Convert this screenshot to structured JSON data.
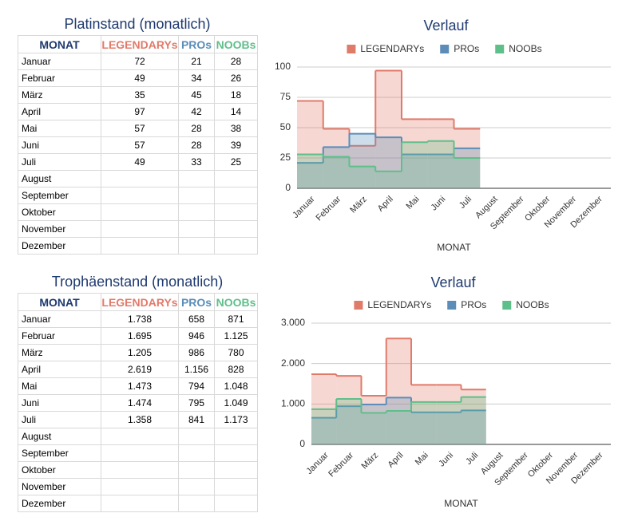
{
  "tables": [
    {
      "title": "Platinstand (monatlich)",
      "header": [
        "MONAT",
        "LEGENDARYs",
        "PROs",
        "NOOBs"
      ],
      "header_colors": [
        "#1f3a70",
        "#e07b6a",
        "#5b8db8",
        "#5fbf8a"
      ],
      "rows": [
        [
          "Januar",
          "72",
          "21",
          "28"
        ],
        [
          "Februar",
          "49",
          "34",
          "26"
        ],
        [
          "März",
          "35",
          "45",
          "18"
        ],
        [
          "April",
          "97",
          "42",
          "14"
        ],
        [
          "Mai",
          "57",
          "28",
          "38"
        ],
        [
          "Juni",
          "57",
          "28",
          "39"
        ],
        [
          "Juli",
          "49",
          "33",
          "25"
        ],
        [
          "August"
        ],
        [
          "September"
        ],
        [
          "Oktober"
        ],
        [
          "November"
        ],
        [
          "Dezember"
        ]
      ]
    },
    {
      "title": "Trophäenstand (monatlich)",
      "header": [
        "MONAT",
        "LEGENDARYs",
        "PROs",
        "NOOBs"
      ],
      "header_colors": [
        "#1f3a70",
        "#e07b6a",
        "#5b8db8",
        "#5fbf8a"
      ],
      "rows": [
        [
          "Januar",
          "1.738",
          "658",
          "871"
        ],
        [
          "Februar",
          "1.695",
          "946",
          "1.125"
        ],
        [
          "März",
          "1.205",
          "986",
          "780"
        ],
        [
          "April",
          "2.619",
          "1.156",
          "828"
        ],
        [
          "Mai",
          "1.473",
          "794",
          "1.048"
        ],
        [
          "Juni",
          "1.474",
          "795",
          "1.049"
        ],
        [
          "Juli",
          "1.358",
          "841",
          "1.173"
        ],
        [
          "August"
        ],
        [
          "September"
        ],
        [
          "Oktober"
        ],
        [
          "November"
        ],
        [
          "Dezember"
        ]
      ]
    }
  ],
  "chart_data": [
    {
      "type": "stepped-area",
      "title": "Verlauf",
      "x_label": "MONAT",
      "categories": [
        "Januar",
        "Februar",
        "März",
        "April",
        "Mai",
        "Juni",
        "Juli",
        "August",
        "September",
        "Oktober",
        "November",
        "Dezember"
      ],
      "series": [
        {
          "name": "LEGENDARYs",
          "color": "#e07b6a",
          "values": [
            72,
            49,
            35,
            97,
            57,
            57,
            49,
            null,
            null,
            null,
            null,
            null
          ]
        },
        {
          "name": "PROs",
          "color": "#5b8db8",
          "values": [
            21,
            34,
            45,
            42,
            28,
            28,
            33,
            null,
            null,
            null,
            null,
            null
          ]
        },
        {
          "name": "NOOBs",
          "color": "#5fbf8a",
          "values": [
            28,
            26,
            18,
            14,
            38,
            39,
            25,
            null,
            null,
            null,
            null,
            null
          ]
        }
      ],
      "ylim": [
        0,
        100
      ],
      "yticks": [
        0,
        25,
        50,
        75,
        100
      ],
      "grid": true,
      "legend": "top"
    },
    {
      "type": "stepped-area",
      "title": "Verlauf",
      "x_label": "MONAT",
      "categories": [
        "Januar",
        "Februar",
        "März",
        "April",
        "Mai",
        "Juni",
        "Juli",
        "August",
        "September",
        "Oktober",
        "November",
        "Dezember"
      ],
      "series": [
        {
          "name": "LEGENDARYs",
          "color": "#e07b6a",
          "values": [
            1738,
            1695,
            1205,
            2619,
            1473,
            1474,
            1358,
            null,
            null,
            null,
            null,
            null
          ]
        },
        {
          "name": "PROs",
          "color": "#5b8db8",
          "values": [
            658,
            946,
            986,
            1156,
            794,
            795,
            841,
            null,
            null,
            null,
            null,
            null
          ]
        },
        {
          "name": "NOOBs",
          "color": "#5fbf8a",
          "values": [
            871,
            1125,
            780,
            828,
            1048,
            1049,
            1173,
            null,
            null,
            null,
            null,
            null
          ]
        }
      ],
      "ylim": [
        0,
        3000
      ],
      "yticks": [
        0,
        {
          "value": 1000,
          "label": "1.000"
        },
        {
          "value": 2000,
          "label": "2.000"
        },
        {
          "value": 3000,
          "label": "3.000"
        }
      ],
      "grid": true,
      "legend": "top"
    }
  ]
}
